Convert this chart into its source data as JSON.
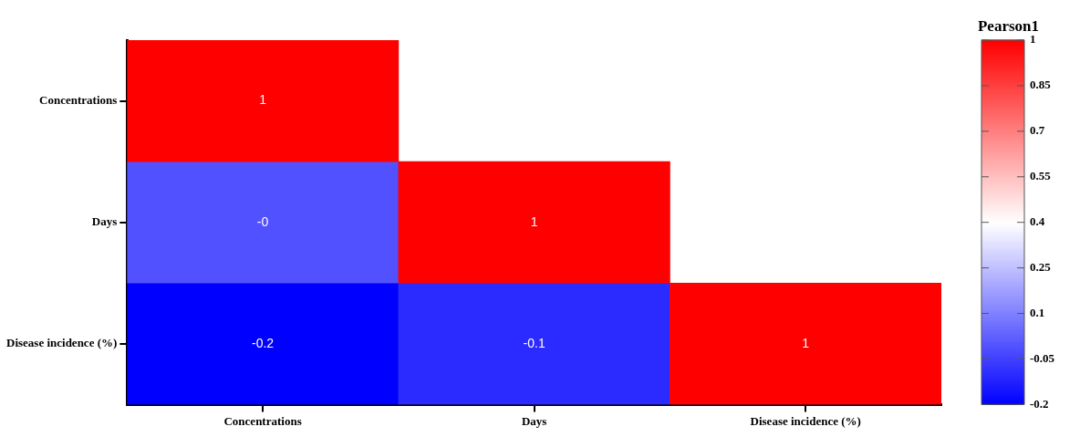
{
  "chart_data": {
    "type": "heatmap",
    "clabel": "Pearson1",
    "categories": [
      "Concentrations",
      "Days",
      "Disease incidence (%)"
    ],
    "y_categories": [
      "Concentrations",
      "Days",
      "Disease incidence (%)"
    ],
    "cells": [
      [
        1,
        null,
        null
      ],
      [
        -0.01,
        1,
        null
      ],
      [
        -0.2,
        -0.1,
        1
      ]
    ],
    "cell_labels": [
      [
        "1",
        null,
        null
      ],
      [
        "-0",
        "1",
        null
      ],
      [
        "-0.2",
        "-0.1",
        "1"
      ]
    ],
    "clim": [
      -0.2,
      1
    ],
    "cticks": [
      {
        "value": -0.2,
        "label": "-0.2"
      },
      {
        "value": -0.05,
        "label": "-0.05"
      },
      {
        "value": 0.1,
        "label": "0.1"
      },
      {
        "value": 0.25,
        "label": "0.25"
      },
      {
        "value": 0.4,
        "label": "0.4"
      },
      {
        "value": 0.55,
        "label": "0.55"
      },
      {
        "value": 0.7,
        "label": "0.7"
      },
      {
        "value": 0.85,
        "label": "0.85"
      },
      {
        "value": 1,
        "label": "1"
      }
    ]
  }
}
